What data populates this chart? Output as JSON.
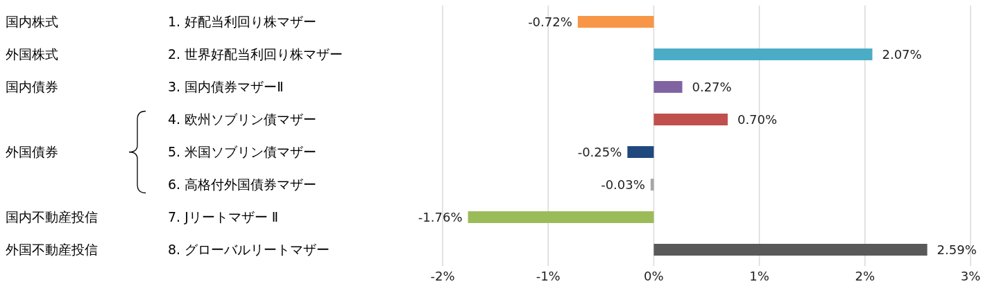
{
  "chart_data": {
    "type": "bar",
    "orientation": "horizontal",
    "categories": [
      "1. 好配当利回り株マザー",
      "2. 世界好配当利回り株マザー",
      "3. 国内債券マザーⅡ",
      "4. 欧州ソブリン債マザー",
      "5. 米国ソブリン債マザー",
      "6. 高格付外国債券マザー",
      "7. Jリートマザー Ⅱ",
      "8. グローバルリートマザー"
    ],
    "values": [
      -0.72,
      2.07,
      0.27,
      0.7,
      -0.25,
      -0.03,
      -1.76,
      2.59
    ],
    "colors": [
      "#f79646",
      "#4bacc6",
      "#8064a2",
      "#c0504d",
      "#1f497d",
      "#a6a6a6",
      "#9bbb59",
      "#595959"
    ],
    "value_labels": [
      "-0.72%",
      "2.07%",
      "0.27%",
      "0.70%",
      "-0.25%",
      "-0.03%",
      "-1.76%",
      "2.59%"
    ],
    "xlim": [
      -2,
      3
    ],
    "xticks": [
      {
        "value": -2,
        "label": "-2%"
      },
      {
        "value": -1,
        "label": "-1%"
      },
      {
        "value": 0,
        "label": "0%"
      },
      {
        "value": 1,
        "label": "1%"
      },
      {
        "value": 2,
        "label": "2%"
      },
      {
        "value": 3,
        "label": "3%"
      }
    ],
    "annotations": [
      "国内株式",
      "外国株式",
      "国内債券",
      "外国債券",
      "国内不動産投信",
      "外国不動産投信"
    ],
    "grid": "x",
    "legend": false
  }
}
